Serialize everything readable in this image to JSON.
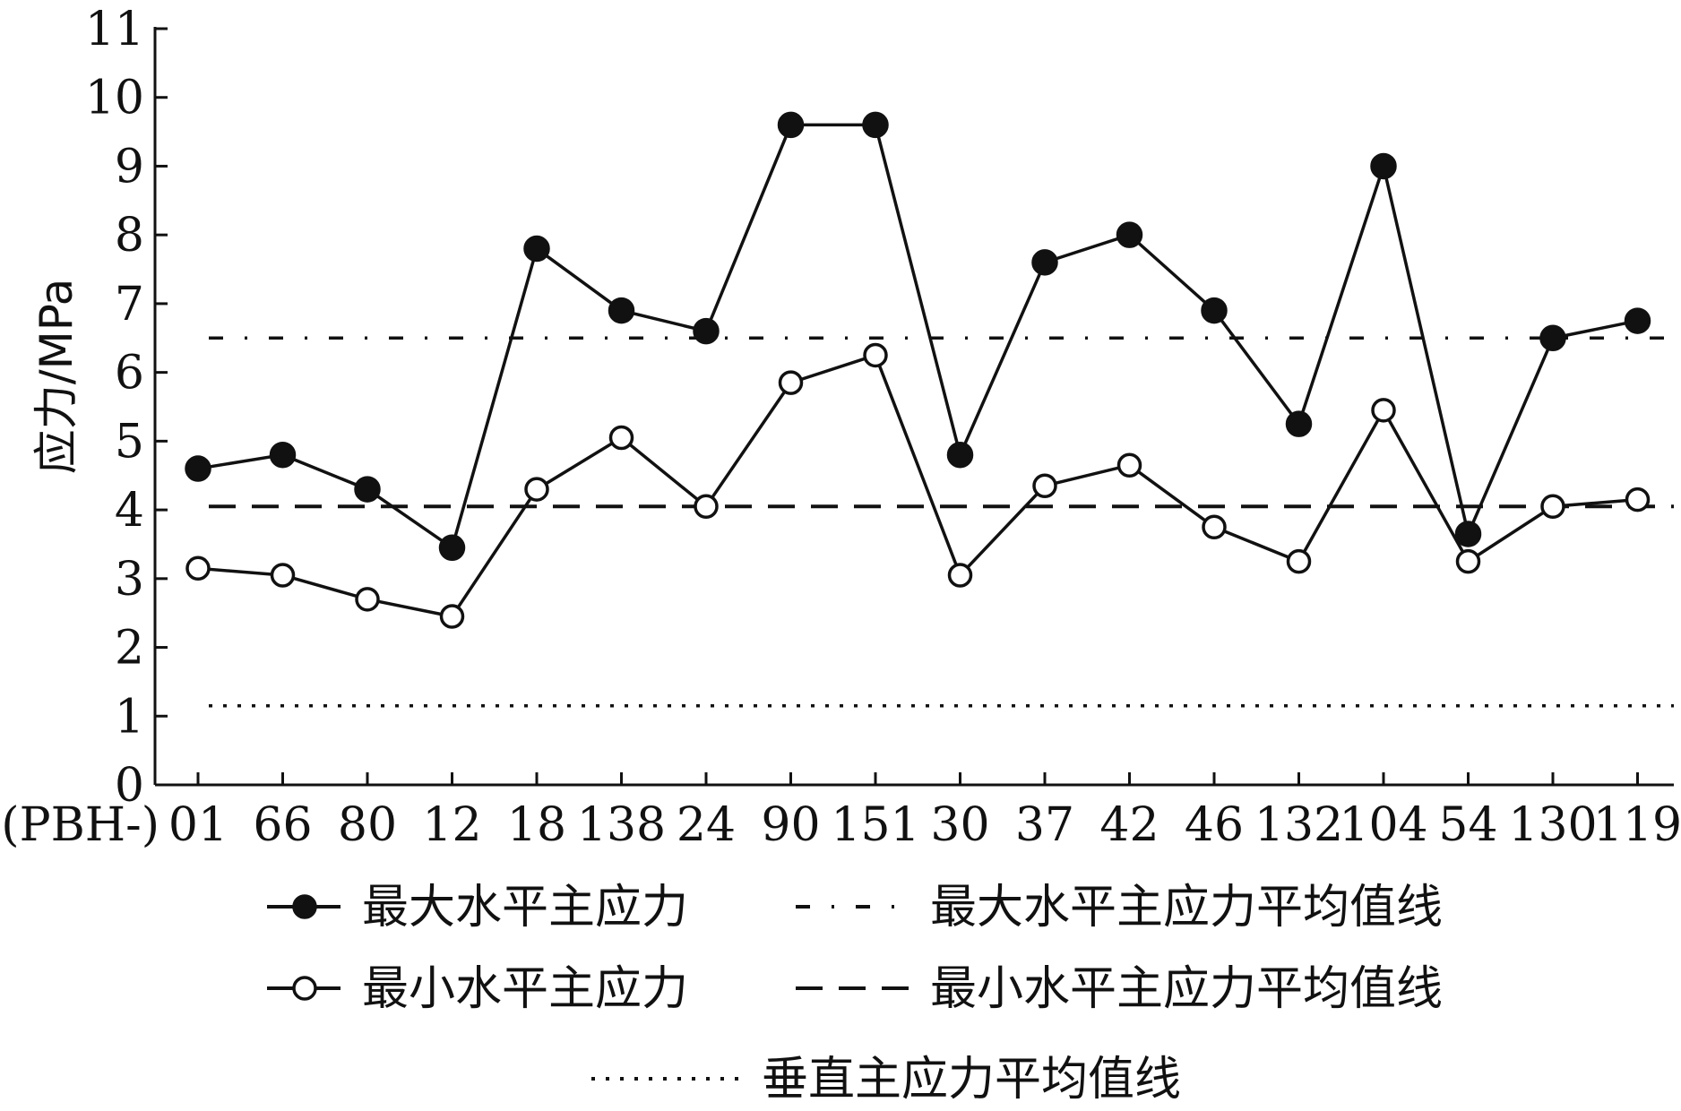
{
  "chart_data": {
    "type": "line",
    "ylabel": "应力/MPa",
    "ylim": [
      0,
      11
    ],
    "yticks": [
      0,
      1,
      2,
      3,
      4,
      5,
      6,
      7,
      8,
      9,
      10,
      11
    ],
    "x_prefix": "(PBH-)",
    "categories": [
      "01",
      "66",
      "80",
      "12",
      "18",
      "138",
      "24",
      "90",
      "151",
      "30",
      "37",
      "42",
      "46",
      "132",
      "104",
      "54",
      "130",
      "119"
    ],
    "series": [
      {
        "name": "最大水平主应力",
        "marker": "filled-circle",
        "values": [
          4.6,
          4.8,
          4.3,
          3.45,
          7.8,
          6.9,
          6.6,
          9.6,
          9.6,
          4.8,
          7.6,
          8.0,
          6.9,
          5.25,
          9.0,
          3.65,
          6.5,
          6.75
        ]
      },
      {
        "name": "最小水平主应力",
        "marker": "open-circle",
        "values": [
          3.15,
          3.05,
          2.7,
          2.45,
          4.3,
          5.05,
          4.05,
          5.85,
          6.25,
          3.05,
          4.35,
          4.65,
          3.75,
          3.25,
          5.45,
          3.25,
          4.05,
          4.15
        ]
      }
    ],
    "reference_lines": [
      {
        "name": "最大水平主应力平均值线",
        "value": 6.5,
        "style": "dash-dot"
      },
      {
        "name": "最小水平主应力平均值线",
        "value": 4.05,
        "style": "dashed"
      },
      {
        "name": "垂直主应力平均值线",
        "value": 1.15,
        "style": "dotted"
      }
    ],
    "grid": false,
    "legend_position": "bottom"
  }
}
